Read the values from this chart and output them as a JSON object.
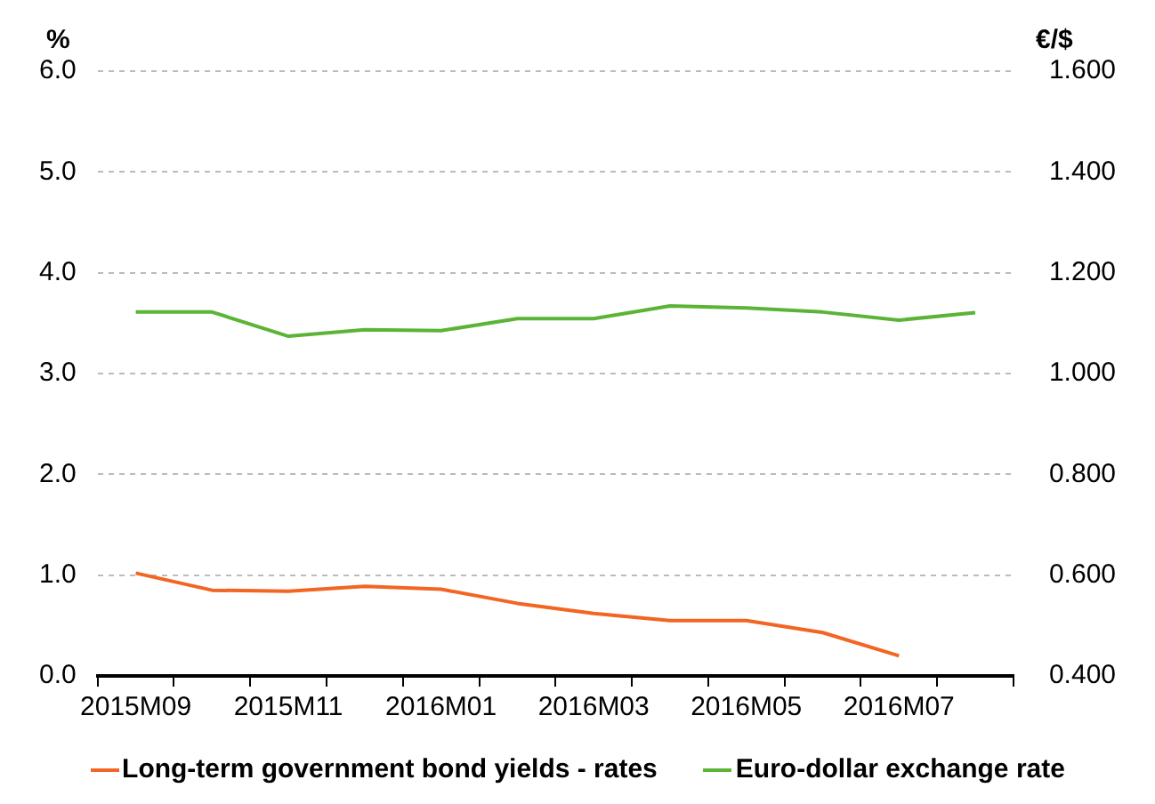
{
  "chart_data": {
    "type": "line",
    "ylabel": "%",
    "y2label": "€/$",
    "categories": [
      "2015M09",
      null,
      "2015M11",
      null,
      "2016M01",
      null,
      "2016M03",
      null,
      "2016M05",
      null,
      "2016M07",
      null
    ],
    "series": [
      {
        "name": "Long-term government bond yields - rates",
        "color": "#f26522",
        "values": [
          1.02,
          0.85,
          0.84,
          0.89,
          0.86,
          0.72,
          0.62,
          0.55,
          0.55,
          0.43,
          0.2,
          null
        ]
      },
      {
        "name": "Euro-dollar exchange rate",
        "color": "#5bb435",
        "axis": "y2",
        "values": [
          1.122,
          1.122,
          1.074,
          1.087,
          1.085,
          1.109,
          1.109,
          1.134,
          1.13,
          1.122,
          1.106,
          1.121
        ]
      }
    ],
    "ylim": [
      0,
      6
    ],
    "yticks": [
      {
        "value": 0,
        "label": "0.0"
      },
      {
        "value": 1,
        "label": "1.0"
      },
      {
        "value": 2,
        "label": "2.0"
      },
      {
        "value": 3,
        "label": "3.0"
      },
      {
        "value": 4,
        "label": "4.0"
      },
      {
        "value": 5,
        "label": "5.0"
      },
      {
        "value": 6,
        "label": "6.0"
      }
    ],
    "y2lim": [
      0.4,
      1.6
    ],
    "y2ticks": [
      {
        "value": 0.4,
        "label": "0.400"
      },
      {
        "value": 0.6,
        "label": "0.600"
      },
      {
        "value": 0.8,
        "label": "0.800"
      },
      {
        "value": 1.0,
        "label": "1.000"
      },
      {
        "value": 1.2,
        "label": "1.200"
      },
      {
        "value": 1.4,
        "label": "1.400"
      },
      {
        "value": 1.6,
        "label": "1.600"
      }
    ],
    "grid": "y",
    "legend": "bottom",
    "marker": "none",
    "line_style": "solid"
  }
}
